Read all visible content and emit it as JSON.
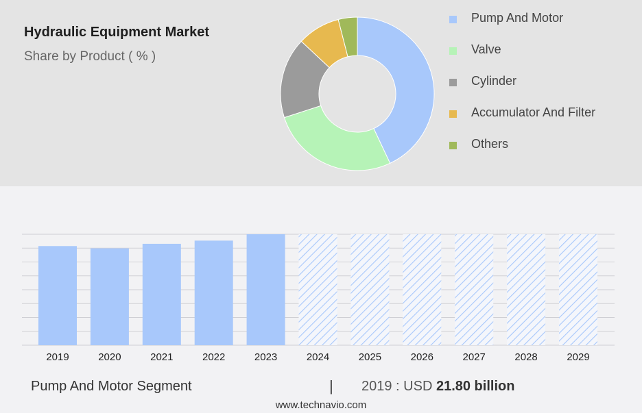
{
  "header": {
    "title": "Hydraulic Equipment Market",
    "subtitle": "Share by Product ( % )"
  },
  "colors": {
    "pump_and_motor": "#a8c8fb",
    "valve": "#b6f3b7",
    "cylinder": "#9b9b9b",
    "accumulator_and_filter": "#e7b94f",
    "others": "#a0b95a",
    "forecast_hatch": "#a8c8fb"
  },
  "chart_data": [
    {
      "type": "pie",
      "title": "",
      "labels": [
        "Pump And Motor",
        "Valve",
        "Cylinder",
        "Accumulator And Filter",
        "Others"
      ],
      "values": [
        43,
        27,
        17,
        9,
        4
      ],
      "legend_placement": "right"
    },
    {
      "type": "bar",
      "title": "",
      "categories": [
        "2019",
        "2020",
        "2021",
        "2022",
        "2023",
        "2024",
        "2025",
        "2026",
        "2027",
        "2028",
        "2029"
      ],
      "series": [
        {
          "values": [
            21.8,
            21.3,
            22.3,
            23.0,
            24.4,
            24.4,
            24.4,
            24.4,
            24.4,
            24.4,
            24.4
          ]
        }
      ],
      "forecast_from": "2024",
      "ylim": [
        0,
        24.4
      ],
      "grid": true,
      "xlabel": "",
      "ylabel": ""
    }
  ],
  "footer": {
    "segment_label": "Pump And Motor Segment",
    "separator": "|",
    "year_prefix": "2019 : USD",
    "value_text": "21.80 billion"
  },
  "watermark": "www.technavio.com"
}
